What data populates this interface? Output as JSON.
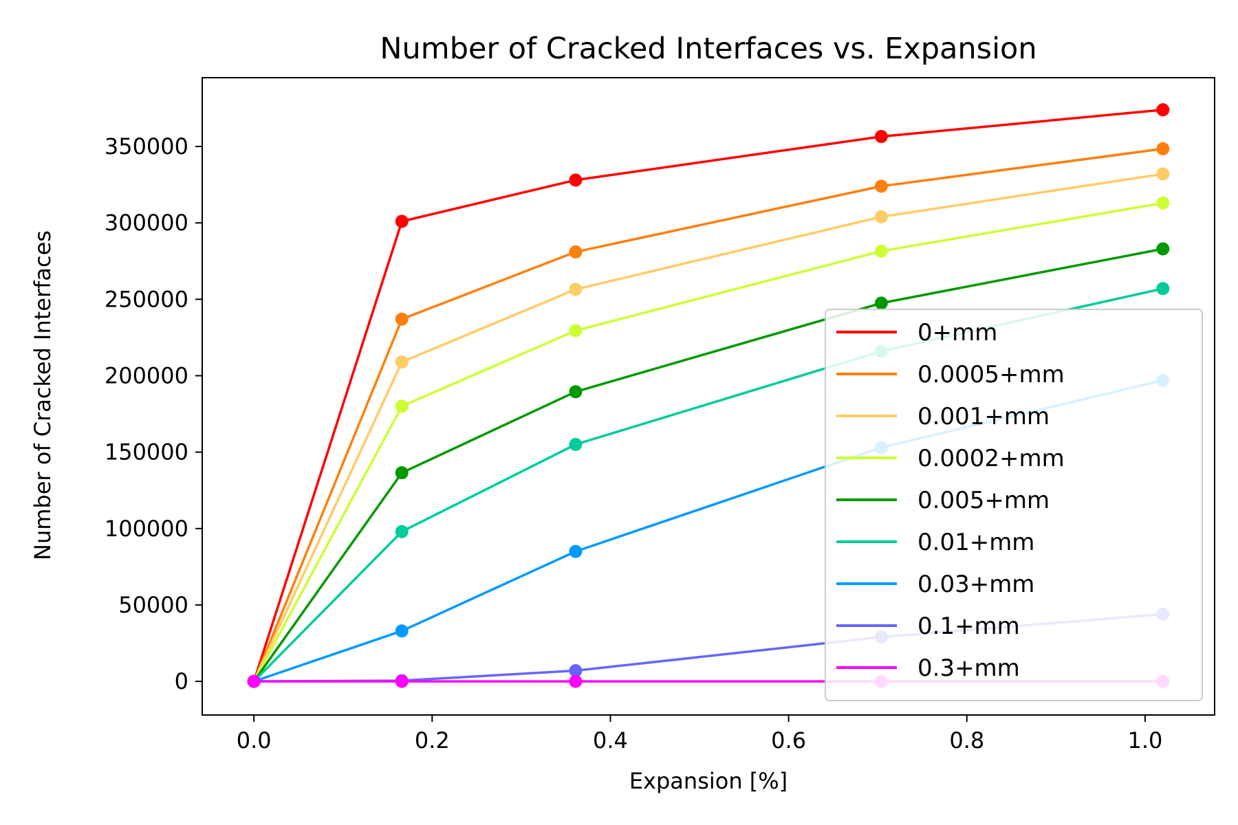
{
  "chart_data": {
    "type": "line",
    "title": "Number of Cracked Interfaces vs. Expansion",
    "xlabel": "Expansion [%]",
    "ylabel": "Number of Cracked Interfaces",
    "xlim": [
      -0.058,
      1.078
    ],
    "ylim": [
      -22000,
      395000
    ],
    "x_ticks": [
      0.0,
      0.2,
      0.4,
      0.6,
      0.8,
      1.0
    ],
    "x_tick_labels": [
      "0.0",
      "0.2",
      "0.4",
      "0.6",
      "0.8",
      "1.0"
    ],
    "y_ticks": [
      0,
      50000,
      100000,
      150000,
      200000,
      250000,
      300000,
      350000
    ],
    "y_tick_labels": [
      "0",
      "50000",
      "100000",
      "150000",
      "200000",
      "250000",
      "300000",
      "350000"
    ],
    "grid": false,
    "legend_position": "lower-right",
    "x": [
      0.0,
      0.166,
      0.361,
      0.704,
      1.02
    ],
    "series": [
      {
        "name": "0+mm",
        "color": "#ff0000",
        "values": [
          0,
          301000,
          328000,
          356500,
          374000
        ]
      },
      {
        "name": "0.0005+mm",
        "color": "#ff7f0e",
        "values": [
          0,
          237000,
          281000,
          324000,
          348500
        ]
      },
      {
        "name": "0.001+mm",
        "color": "#ffcc66",
        "values": [
          0,
          209000,
          256500,
          304000,
          332000
        ]
      },
      {
        "name": "0.0002+mm",
        "color": "#ccff33",
        "values": [
          0,
          180000,
          229500,
          281500,
          313000
        ]
      },
      {
        "name": "0.005+mm",
        "color": "#009900",
        "values": [
          0,
          136500,
          189500,
          247500,
          283000
        ]
      },
      {
        "name": "0.01+mm",
        "color": "#00cc99",
        "values": [
          0,
          98000,
          155000,
          216000,
          257000
        ]
      },
      {
        "name": "0.03+mm",
        "color": "#0099ff",
        "values": [
          0,
          33000,
          85000,
          153000,
          197000
        ]
      },
      {
        "name": "0.1+mm",
        "color": "#6666ff",
        "values": [
          0,
          500,
          7000,
          29000,
          44000
        ]
      },
      {
        "name": "0.3+mm",
        "color": "#ff00ff",
        "values": [
          0,
          0,
          0,
          0,
          0
        ]
      }
    ]
  }
}
